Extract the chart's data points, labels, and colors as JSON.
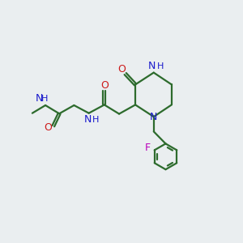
{
  "background_color": "#eaeef0",
  "bond_color": "#2d6b2d",
  "N_color": "#1a1acc",
  "O_color": "#cc1a1a",
  "F_color": "#bb00bb",
  "figsize": [
    3.0,
    3.0
  ],
  "dpi": 100,
  "xlim": [
    0,
    10
  ],
  "ylim": [
    0,
    10
  ],
  "lw": 1.6,
  "fontsize": 9
}
